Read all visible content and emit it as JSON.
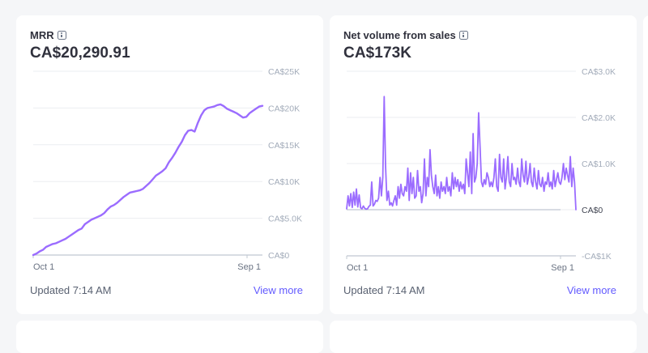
{
  "colors": {
    "series": "#9b6cff",
    "link": "#635bff",
    "grid": "#ebeef1",
    "axis": "#c0c8d2"
  },
  "cards": [
    {
      "title": "MRR",
      "info_icon": "info-icon",
      "value": "CA$20,290.91",
      "updated": "Updated 7:14 AM",
      "link": "View more"
    },
    {
      "title": "Net volume from sales",
      "info_icon": "info-icon",
      "value": "CA$173K",
      "updated": "Updated 7:14 AM",
      "link": "View more"
    }
  ],
  "chart_data": [
    {
      "type": "line",
      "title": "MRR",
      "x_tick_labels": [
        "Oct 1",
        "Sep 1"
      ],
      "y_tick_labels": [
        "CA$0",
        "CA$5.0K",
        "CA$10K",
        "CA$15K",
        "CA$20K",
        "CA$25K"
      ],
      "y_ticks": [
        0,
        5000,
        10000,
        15000,
        20000,
        25000
      ],
      "ylim": [
        0,
        25000
      ],
      "grid": true,
      "series": [
        {
          "name": "MRR",
          "values": [
            0,
            200,
            500,
            700,
            1100,
            1300,
            1500,
            1600,
            1800,
            2000,
            2200,
            2500,
            2800,
            3100,
            3400,
            3600,
            4200,
            4500,
            4800,
            5000,
            5200,
            5400,
            5700,
            6200,
            6600,
            6800,
            7100,
            7500,
            7900,
            8200,
            8500,
            8600,
            8700,
            8800,
            9000,
            9400,
            9800,
            10300,
            10800,
            11100,
            11400,
            11800,
            12600,
            13200,
            13900,
            14700,
            15400,
            16300,
            16900,
            17000,
            16800,
            18000,
            19000,
            19700,
            20000,
            20100,
            20200,
            20400,
            20500,
            20250,
            19900,
            19700,
            19500,
            19300,
            19000,
            18700,
            18800,
            19300,
            19600,
            19900,
            20200,
            20300
          ]
        }
      ]
    },
    {
      "type": "line",
      "title": "Net volume from sales",
      "x_tick_labels": [
        "Oct 1",
        "Sep 1"
      ],
      "y_tick_labels": [
        "-CA$1K",
        "CA$0",
        "CA$1.0K",
        "CA$2.0K",
        "CA$3.0K"
      ],
      "y_ticks": [
        -1000,
        0,
        1000,
        2000,
        3000
      ],
      "ylim": [
        -1000,
        3000
      ],
      "grid": true,
      "series": [
        {
          "name": "Net volume",
          "values": [
            20,
            300,
            80,
            350,
            50,
            380,
            100,
            450,
            60,
            320,
            40,
            20,
            80,
            30,
            10,
            20,
            70,
            100,
            600,
            80,
            120,
            200,
            180,
            250,
            700,
            300,
            700,
            2450,
            950,
            200,
            400,
            100,
            150,
            80,
            200,
            300,
            100,
            500,
            250,
            550,
            350,
            300,
            500,
            400,
            900,
            200,
            800,
            350,
            700,
            250,
            300,
            850,
            400,
            500,
            150,
            350,
            1100,
            300,
            700,
            500,
            1300,
            750,
            500,
            350,
            750,
            300,
            500,
            250,
            600,
            400,
            500,
            350,
            700,
            400,
            500,
            300,
            800,
            450,
            700,
            500,
            650,
            400,
            600,
            450,
            550,
            350,
            1100,
            800,
            500,
            1250,
            350,
            1650,
            600,
            700,
            1000,
            2100,
            1350,
            600,
            500,
            650,
            550,
            800,
            700,
            500,
            600,
            500,
            700,
            1100,
            500,
            400,
            1200,
            700,
            600,
            1100,
            450,
            700,
            1150,
            600,
            500,
            1000,
            650,
            700,
            550,
            900,
            600,
            500,
            1100,
            750,
            600,
            1050,
            550,
            700,
            1000,
            600,
            500,
            900,
            600,
            450,
            850,
            550,
            500,
            700,
            400,
            600,
            550,
            800,
            500,
            600,
            450,
            850,
            500,
            650,
            800,
            600,
            550,
            700,
            1000,
            650,
            900,
            750,
            600,
            1150,
            500,
            900,
            600,
            0
          ]
        }
      ]
    }
  ]
}
